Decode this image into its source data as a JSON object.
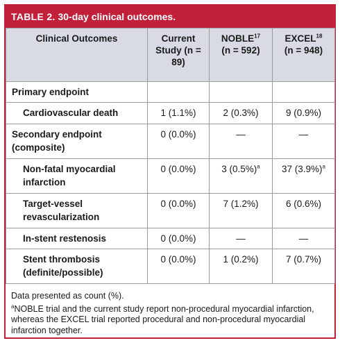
{
  "table": {
    "label": "TABLE 2.",
    "title": "30-day clinical outcomes.",
    "accent_color": "#c2203a",
    "header_bg": "#d9dbe4",
    "columns": [
      {
        "label": "Clinical Outcomes",
        "sup": ""
      },
      {
        "label": "Current Study (n = 89)",
        "sup": ""
      },
      {
        "label": "NOBLE",
        "sup": "17",
        "sub": "(n = 592)"
      },
      {
        "label": "EXCEL",
        "sup": "18",
        "sub": "(n = 948)"
      }
    ],
    "rows": [
      {
        "label": "Primary endpoint",
        "type": "category",
        "values": [
          "",
          "",
          ""
        ]
      },
      {
        "label": "Cardiovascular death",
        "type": "sub",
        "values": [
          "1 (1.1%)",
          "2 (0.3%)",
          "9 (0.9%)"
        ]
      },
      {
        "label": "Secondary endpoint (composite)",
        "type": "category",
        "values": [
          "0 (0.0%)",
          "—",
          "—"
        ]
      },
      {
        "label": "Non-fatal myocardial infarction",
        "type": "sub",
        "values": [
          "0 (0.0%)",
          "3 (0.5%)",
          "37 (3.9%)"
        ],
        "marks": [
          "",
          "a",
          "a"
        ]
      },
      {
        "label": "Target-vessel revascularization",
        "type": "sub",
        "values": [
          "0 (0.0%)",
          "7 (1.2%)",
          "6 (0.6%)"
        ]
      },
      {
        "label": "In-stent restenosis",
        "type": "sub",
        "values": [
          "0 (0.0%)",
          "—",
          "—"
        ]
      },
      {
        "label": "Stent thrombosis (definite/possible)",
        "type": "sub",
        "values": [
          "0 (0.0%)",
          "1 (0.2%)",
          "7 (0.7%)"
        ]
      }
    ]
  },
  "footnotes": {
    "note1": "Data presented as count (%).",
    "note2_mark": "a",
    "note2": "NOBLE trial and the current study report non-procedural myocardial infarction, whereas the EXCEL trial reported procedural and non-procedural myocardial infarction together."
  }
}
